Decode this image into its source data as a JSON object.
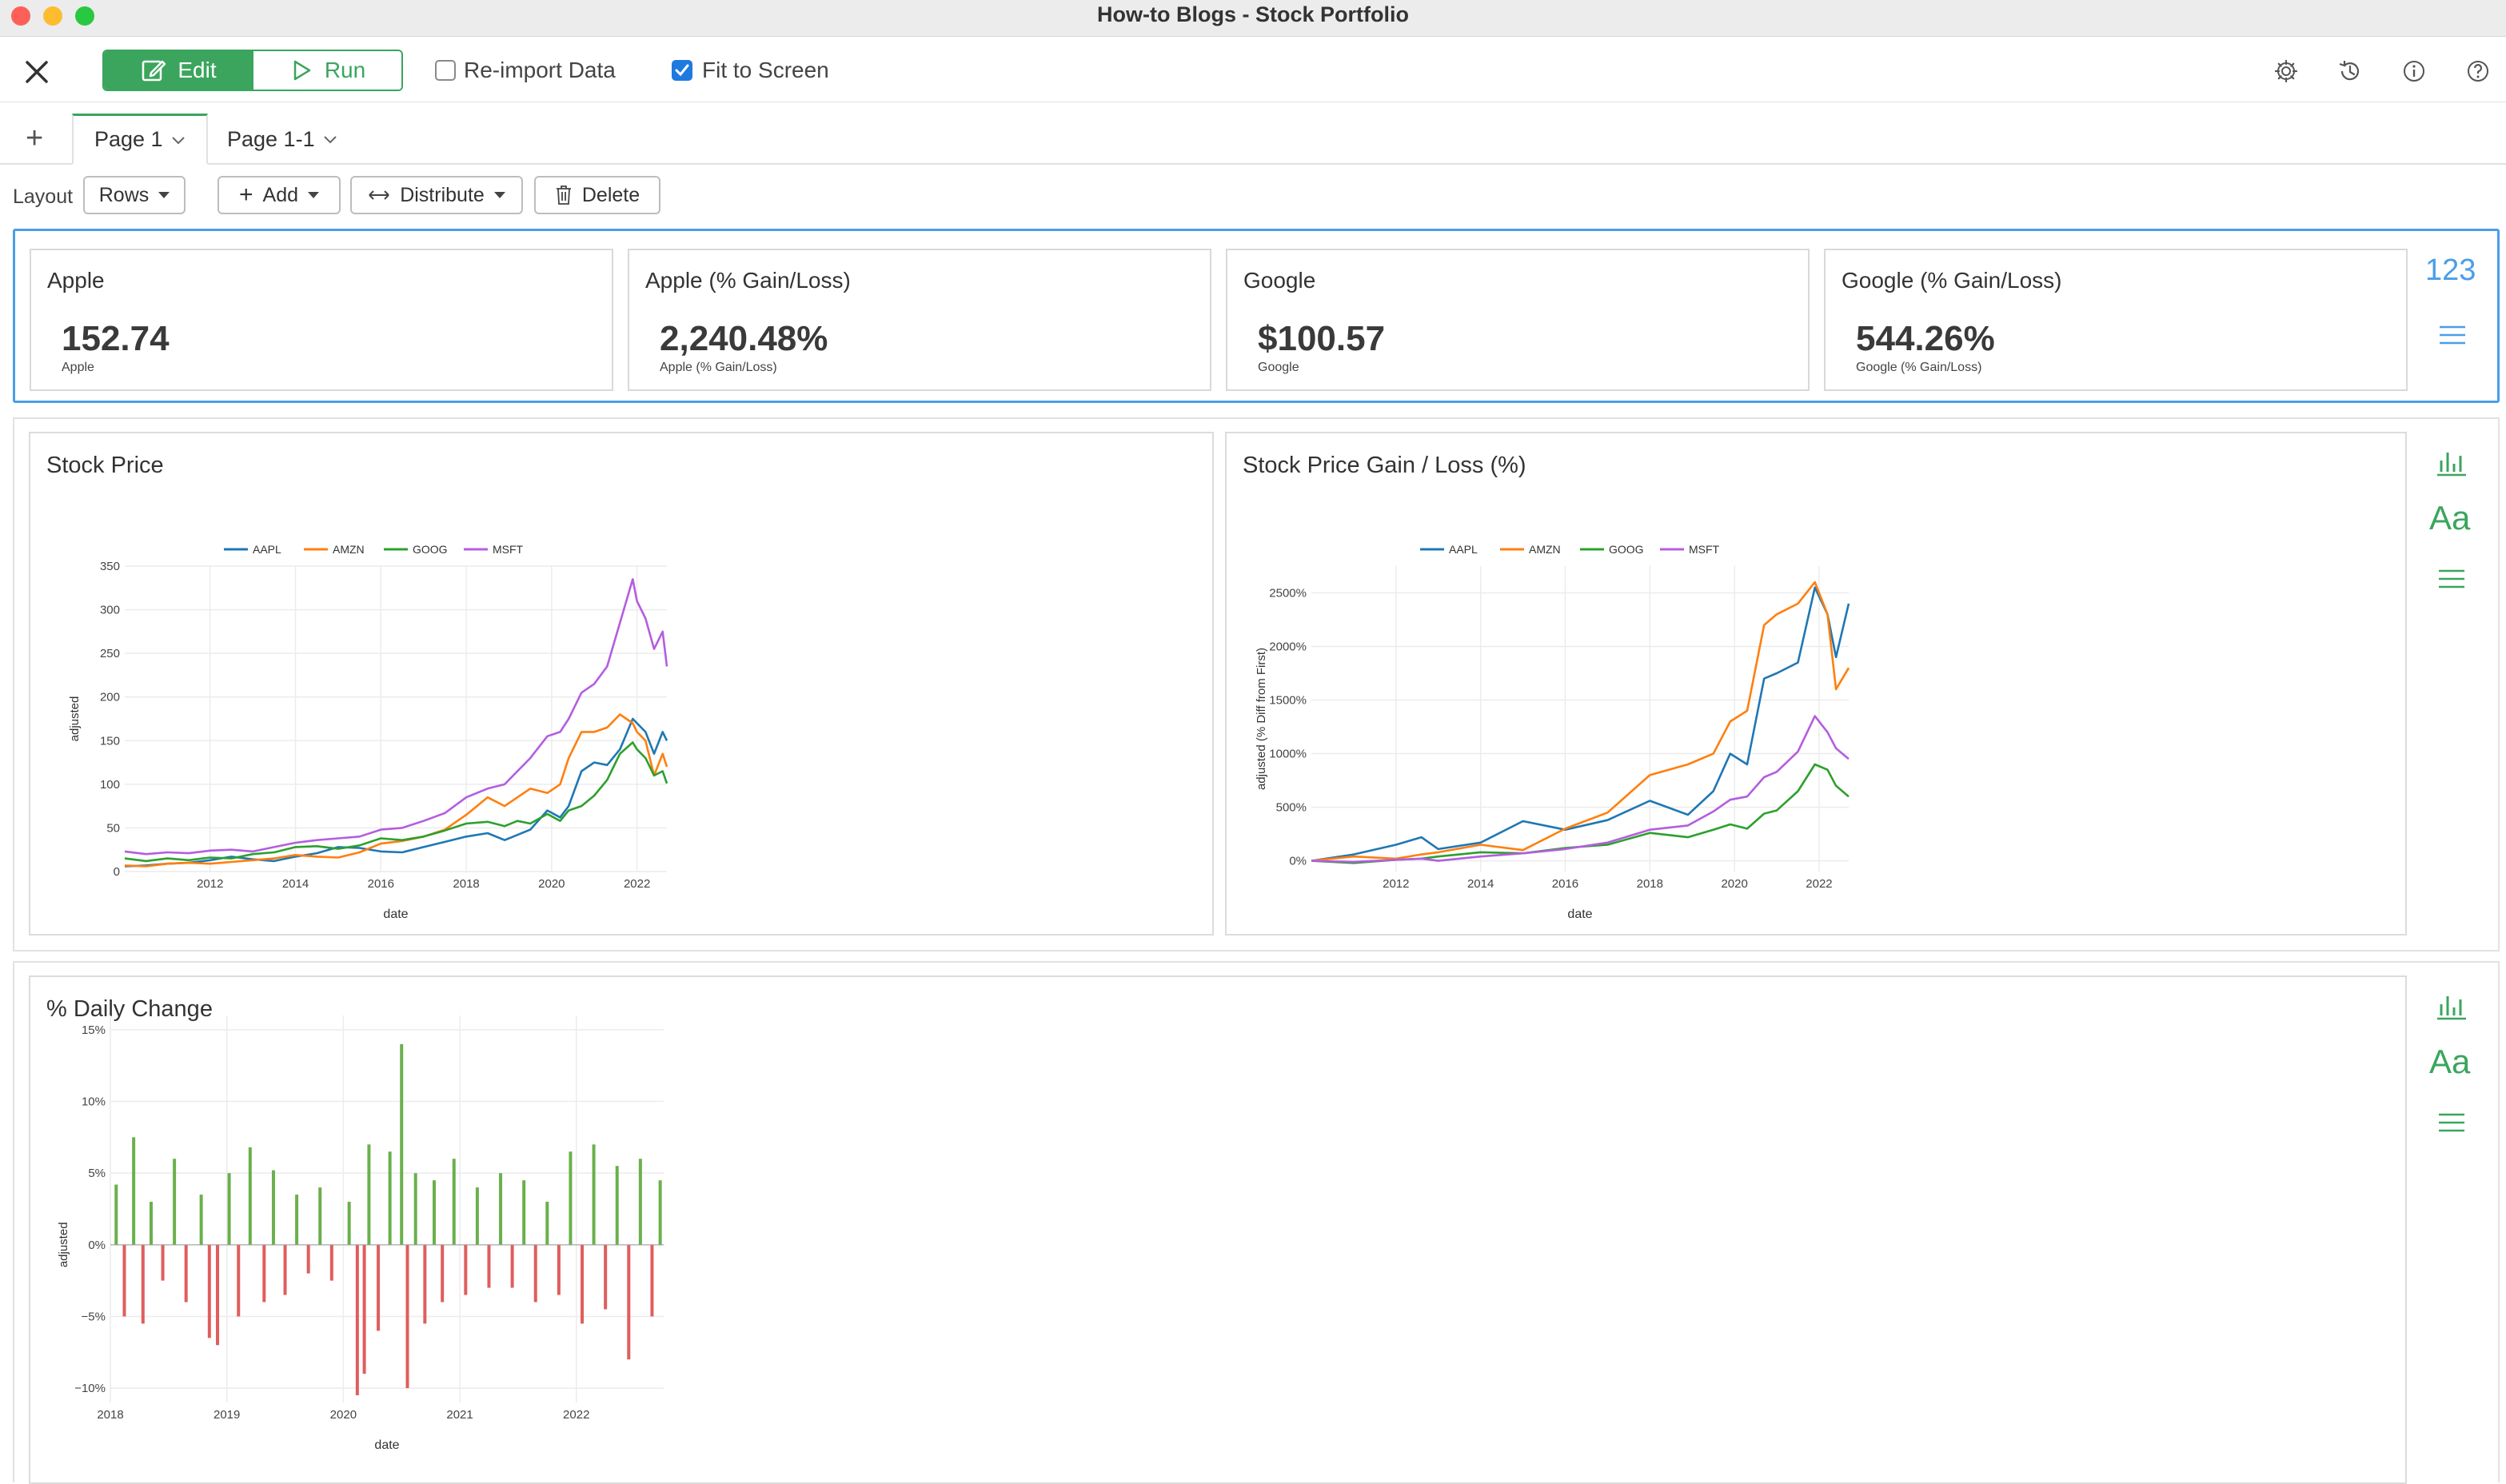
{
  "window": {
    "title": "How-to Blogs - Stock Portfolio"
  },
  "toolbar": {
    "edit_label": "Edit",
    "run_label": "Run",
    "reimport_label": "Re-import Data",
    "reimport_checked": false,
    "fit_label": "Fit to Screen",
    "fit_checked": true
  },
  "tabs": [
    {
      "label": "Page 1",
      "active": true
    },
    {
      "label": "Page 1-1",
      "active": false
    }
  ],
  "layout_bar": {
    "layout_label": "Layout",
    "layout_value": "Rows",
    "add_label": "Add",
    "distribute_label": "Distribute",
    "delete_label": "Delete"
  },
  "kpis": [
    {
      "title": "Apple",
      "value": "152.74",
      "sub": "Apple"
    },
    {
      "title": "Apple (% Gain/Loss)",
      "value": "2,240.48%",
      "sub": "Apple (% Gain/Loss)"
    },
    {
      "title": "Google",
      "value": "$100.57",
      "sub": "Google"
    },
    {
      "title": "Google (% Gain/Loss)",
      "value": "544.26%",
      "sub": "Google (% Gain/Loss)"
    }
  ],
  "kpi_side": {
    "number_label": "123"
  },
  "chart_side": {
    "text_label": "Aa"
  },
  "colors": {
    "accent_green": "#3ba55d",
    "selection_blue": "#4a9ee8",
    "checkbox_blue": "#1f7ae0"
  },
  "chart_data": [
    {
      "type": "line",
      "title": "Stock Price",
      "xlabel": "date",
      "ylabel": "adjusted",
      "legend_position": "top",
      "x_ticks": [
        "2012",
        "2014",
        "2016",
        "2018",
        "2020",
        "2022"
      ],
      "y_ticks": [
        "0",
        "50",
        "100",
        "150",
        "200",
        "250",
        "300",
        "350"
      ],
      "ylim": [
        0,
        350
      ],
      "xlim": [
        2010.0,
        2022.7
      ],
      "series": [
        {
          "name": "AAPL",
          "color": "#1f77b4",
          "x": [
            2010.0,
            2010.5,
            2011.0,
            2011.5,
            2012.0,
            2012.5,
            2013.0,
            2013.5,
            2014.0,
            2014.5,
            2015.0,
            2015.5,
            2016.0,
            2016.5,
            2017.0,
            2017.5,
            2018.0,
            2018.5,
            2018.9,
            2019.2,
            2019.5,
            2019.9,
            2020.2,
            2020.4,
            2020.7,
            2021.0,
            2021.3,
            2021.6,
            2021.9,
            2022.0,
            2022.2,
            2022.4,
            2022.6,
            2022.7
          ],
          "y": [
            6,
            7,
            9,
            10,
            13,
            17,
            14,
            12,
            17,
            21,
            28,
            27,
            23,
            22,
            28,
            34,
            40,
            44,
            36,
            42,
            48,
            70,
            62,
            75,
            115,
            125,
            122,
            140,
            175,
            170,
            160,
            135,
            160,
            150
          ]
        },
        {
          "name": "AMZN",
          "color": "#ff7f0e",
          "x": [
            2010.0,
            2010.5,
            2011.0,
            2011.5,
            2012.0,
            2012.5,
            2013.0,
            2013.5,
            2014.0,
            2014.5,
            2015.0,
            2015.5,
            2016.0,
            2016.5,
            2017.0,
            2017.5,
            2018.0,
            2018.5,
            2018.9,
            2019.2,
            2019.5,
            2019.9,
            2020.2,
            2020.4,
            2020.7,
            2021.0,
            2021.3,
            2021.6,
            2021.9,
            2022.0,
            2022.2,
            2022.4,
            2022.6,
            2022.7
          ],
          "y": [
            7,
            6,
            9,
            10,
            9,
            11,
            13,
            15,
            19,
            17,
            16,
            22,
            32,
            35,
            40,
            48,
            65,
            85,
            75,
            85,
            95,
            90,
            100,
            130,
            160,
            160,
            165,
            180,
            170,
            160,
            150,
            110,
            135,
            120
          ]
        },
        {
          "name": "GOOG",
          "color": "#2ca02c",
          "x": [
            2010.0,
            2010.5,
            2011.0,
            2011.5,
            2012.0,
            2012.5,
            2013.0,
            2013.5,
            2014.0,
            2014.5,
            2015.0,
            2015.5,
            2016.0,
            2016.5,
            2017.0,
            2017.5,
            2018.0,
            2018.5,
            2018.9,
            2019.2,
            2019.5,
            2019.9,
            2020.2,
            2020.4,
            2020.7,
            2021.0,
            2021.3,
            2021.6,
            2021.9,
            2022.0,
            2022.2,
            2022.4,
            2022.6,
            2022.7
          ],
          "y": [
            15,
            12,
            15,
            13,
            16,
            15,
            20,
            22,
            28,
            29,
            26,
            30,
            38,
            36,
            40,
            47,
            55,
            57,
            52,
            58,
            55,
            66,
            58,
            70,
            75,
            87,
            105,
            135,
            148,
            140,
            130,
            110,
            115,
            101
          ]
        },
        {
          "name": "MSFT",
          "color": "#b45de0",
          "x": [
            2010.0,
            2010.5,
            2011.0,
            2011.5,
            2012.0,
            2012.5,
            2013.0,
            2013.5,
            2014.0,
            2014.5,
            2015.0,
            2015.5,
            2016.0,
            2016.5,
            2017.0,
            2017.5,
            2018.0,
            2018.5,
            2018.9,
            2019.2,
            2019.5,
            2019.9,
            2020.2,
            2020.4,
            2020.7,
            2021.0,
            2021.3,
            2021.6,
            2021.9,
            2022.0,
            2022.2,
            2022.4,
            2022.6,
            2022.7
          ],
          "y": [
            23,
            20,
            22,
            21,
            24,
            25,
            23,
            28,
            33,
            36,
            38,
            40,
            48,
            50,
            58,
            67,
            85,
            95,
            100,
            115,
            130,
            155,
            160,
            175,
            205,
            215,
            235,
            285,
            335,
            310,
            290,
            255,
            275,
            235
          ]
        }
      ]
    },
    {
      "type": "line",
      "title": "Stock Price Gain / Loss (%)",
      "xlabel": "date",
      "ylabel": "adjusted (% Diff from First)",
      "legend_position": "top",
      "x_ticks": [
        "2012",
        "2014",
        "2016",
        "2018",
        "2020",
        "2022"
      ],
      "y_ticks": [
        "0%",
        "500%",
        "1000%",
        "1500%",
        "2000%",
        "2500%"
      ],
      "ylim": [
        -100,
        2750
      ],
      "xlim": [
        2010.0,
        2022.7
      ],
      "series": [
        {
          "name": "AAPL",
          "color": "#1f77b4",
          "x": [
            2010.0,
            2011.0,
            2012.0,
            2012.6,
            2013.0,
            2014.0,
            2015.0,
            2016.0,
            2017.0,
            2018.0,
            2018.9,
            2019.5,
            2019.9,
            2020.3,
            2020.7,
            2021.0,
            2021.5,
            2021.9,
            2022.2,
            2022.4,
            2022.7
          ],
          "y": [
            0,
            60,
            150,
            220,
            110,
            170,
            370,
            290,
            380,
            560,
            430,
            650,
            1000,
            900,
            1700,
            1750,
            1850,
            2550,
            2300,
            1900,
            2400
          ]
        },
        {
          "name": "AMZN",
          "color": "#ff7f0e",
          "x": [
            2010.0,
            2011.0,
            2012.0,
            2012.6,
            2013.0,
            2014.0,
            2015.0,
            2016.0,
            2017.0,
            2018.0,
            2018.9,
            2019.5,
            2019.9,
            2020.3,
            2020.7,
            2021.0,
            2021.5,
            2021.9,
            2022.2,
            2022.4,
            2022.7
          ],
          "y": [
            0,
            40,
            20,
            60,
            80,
            150,
            100,
            300,
            450,
            800,
            900,
            1000,
            1300,
            1400,
            2200,
            2300,
            2400,
            2600,
            2300,
            1600,
            1800
          ]
        },
        {
          "name": "GOOG",
          "color": "#2ca02c",
          "x": [
            2010.0,
            2011.0,
            2012.0,
            2012.6,
            2013.0,
            2014.0,
            2015.0,
            2016.0,
            2017.0,
            2018.0,
            2018.9,
            2019.5,
            2019.9,
            2020.3,
            2020.7,
            2021.0,
            2021.5,
            2021.9,
            2022.2,
            2022.4,
            2022.7
          ],
          "y": [
            0,
            -20,
            10,
            20,
            40,
            80,
            70,
            120,
            150,
            260,
            220,
            290,
            340,
            300,
            440,
            470,
            650,
            900,
            850,
            700,
            600
          ]
        },
        {
          "name": "MSFT",
          "color": "#b45de0",
          "x": [
            2010.0,
            2011.0,
            2012.0,
            2012.6,
            2013.0,
            2014.0,
            2015.0,
            2016.0,
            2017.0,
            2018.0,
            2018.9,
            2019.5,
            2019.9,
            2020.3,
            2020.7,
            2021.0,
            2021.5,
            2021.9,
            2022.2,
            2022.4,
            2022.7
          ],
          "y": [
            0,
            -10,
            10,
            20,
            0,
            40,
            70,
            110,
            170,
            290,
            330,
            460,
            570,
            600,
            780,
            830,
            1020,
            1350,
            1200,
            1050,
            950
          ]
        }
      ]
    },
    {
      "type": "bar",
      "title": "% Daily Change",
      "xlabel": "date",
      "ylabel": "adjusted",
      "x_ticks": [
        "2018",
        "2019",
        "2020",
        "2021",
        "2022"
      ],
      "y_ticks": [
        "−10%",
        "−5%",
        "0%",
        "5%",
        "10%",
        "15%"
      ],
      "ylim": [
        -11,
        16
      ],
      "xlim": [
        2018.0,
        2022.75
      ],
      "positive_color": "#6ab04c",
      "negative_color": "#e05d5d",
      "x": [
        2018.05,
        2018.12,
        2018.2,
        2018.28,
        2018.35,
        2018.45,
        2018.55,
        2018.65,
        2018.78,
        2018.85,
        2018.92,
        2019.02,
        2019.1,
        2019.2,
        2019.32,
        2019.4,
        2019.5,
        2019.6,
        2019.7,
        2019.8,
        2019.9,
        2020.05,
        2020.12,
        2020.18,
        2020.22,
        2020.3,
        2020.4,
        2020.5,
        2020.55,
        2020.62,
        2020.7,
        2020.78,
        2020.85,
        2020.95,
        2021.05,
        2021.15,
        2021.25,
        2021.35,
        2021.45,
        2021.55,
        2021.65,
        2021.75,
        2021.85,
        2021.95,
        2022.05,
        2022.15,
        2022.25,
        2022.35,
        2022.45,
        2022.55,
        2022.65,
        2022.72
      ],
      "values": [
        4.2,
        -5.0,
        7.5,
        -5.5,
        3.0,
        -2.5,
        6.0,
        -4.0,
        3.5,
        -6.5,
        -7.0,
        5.0,
        -5.0,
        6.8,
        -4.0,
        5.2,
        -3.5,
        3.5,
        -2.0,
        4.0,
        -2.5,
        3.0,
        -10.5,
        -9.0,
        7.0,
        -6.0,
        6.5,
        14.0,
        -10.0,
        5.0,
        -5.5,
        4.5,
        -4.0,
        6.0,
        -3.5,
        4.0,
        -3.0,
        5.0,
        -3.0,
        4.5,
        -4.0,
        3.0,
        -3.5,
        6.5,
        -5.5,
        7.0,
        -4.5,
        5.5,
        -8.0,
        6.0,
        -5.0,
        4.5
      ]
    }
  ]
}
